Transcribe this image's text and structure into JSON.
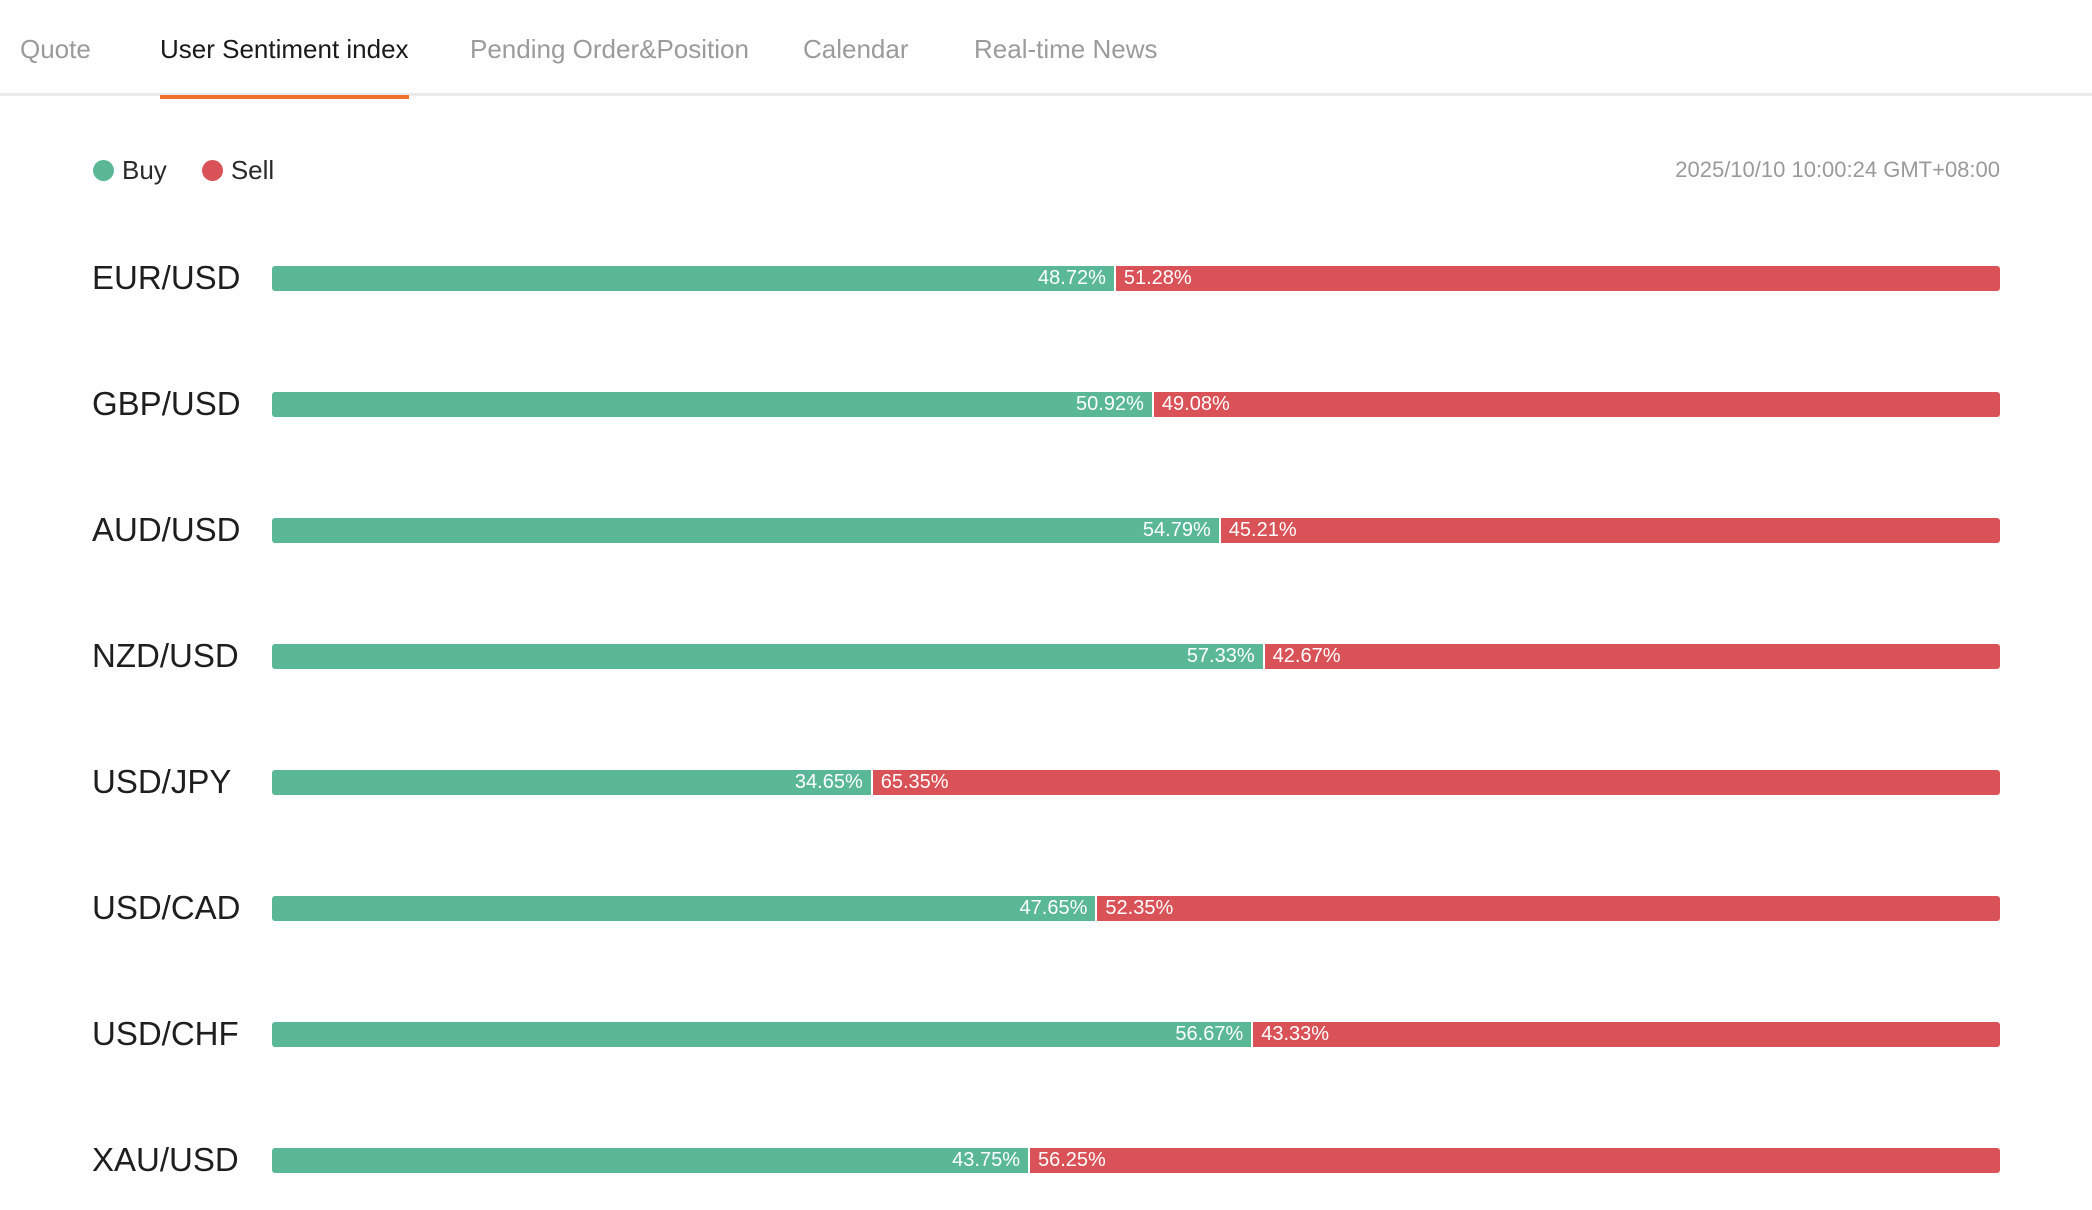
{
  "tabs": [
    {
      "label": "Quote",
      "active": false
    },
    {
      "label": "User Sentiment index",
      "active": true
    },
    {
      "label": "Pending Order&Position",
      "active": false
    },
    {
      "label": "Calendar",
      "active": false
    },
    {
      "label": "Real-time News",
      "active": false
    }
  ],
  "legend": {
    "buy_label": "Buy",
    "sell_label": "Sell"
  },
  "timestamp": "2025/10/10 10:00:24 GMT+08:00",
  "colors": {
    "buy": "#5ab897",
    "sell": "#d95258",
    "accent": "#f0742b"
  },
  "sentiment": [
    {
      "pair": "EUR/USD",
      "buy": 48.72,
      "buy_label": "48.72%",
      "sell_label": "51.28%"
    },
    {
      "pair": "GBP/USD",
      "buy": 50.92,
      "buy_label": "50.92%",
      "sell_label": "49.08%"
    },
    {
      "pair": "AUD/USD",
      "buy": 54.79,
      "buy_label": "54.79%",
      "sell_label": "45.21%"
    },
    {
      "pair": "NZD/USD",
      "buy": 57.33,
      "buy_label": "57.33%",
      "sell_label": "42.67%"
    },
    {
      "pair": "USD/JPY",
      "buy": 34.65,
      "buy_label": "34.65%",
      "sell_label": "65.35%"
    },
    {
      "pair": "USD/CAD",
      "buy": 47.65,
      "buy_label": "47.65%",
      "sell_label": "52.35%"
    },
    {
      "pair": "USD/CHF",
      "buy": 56.67,
      "buy_label": "56.67%",
      "sell_label": "43.33%"
    },
    {
      "pair": "XAU/USD",
      "buy": 43.75,
      "buy_label": "43.75%",
      "sell_label": "56.25%"
    }
  ]
}
